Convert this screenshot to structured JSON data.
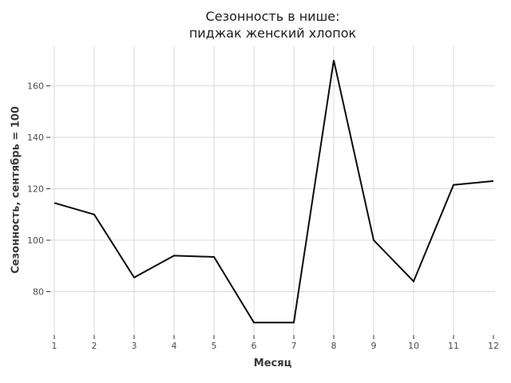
{
  "chart_data": {
    "type": "line",
    "title": "Сезонность в нише: пиджак женский хлопок",
    "title_lines": [
      "Сезонность в нише:",
      "пиджак женский хлопок"
    ],
    "xlabel": "Месяц",
    "ylabel": "Сезонность, сентябрь = 100",
    "x": [
      1,
      2,
      3,
      4,
      5,
      6,
      7,
      8,
      9,
      10,
      11,
      12
    ],
    "values": [
      114.5,
      110,
      85.5,
      94,
      93.5,
      68,
      68,
      170,
      100,
      84,
      121.5,
      123
    ],
    "xticks": [
      1,
      2,
      3,
      4,
      5,
      6,
      7,
      8,
      9,
      10,
      11,
      12
    ],
    "yticks": [
      80,
      100,
      120,
      140,
      160
    ],
    "x_gridlines": [
      1,
      2,
      3,
      4,
      5,
      6,
      7,
      8,
      9,
      10,
      11
    ],
    "xlim": [
      0.9,
      12.04
    ],
    "ylim": [
      63.1,
      175.4
    ],
    "grid": true,
    "legend": false,
    "colors": {
      "line": "#0a0a0a",
      "grid": "#d8d8d8",
      "tick": "#333333",
      "tick_label": "#4d4d4d",
      "axis_title": "#383838",
      "title": "#1c1c1c",
      "background": "#ffffff"
    }
  }
}
